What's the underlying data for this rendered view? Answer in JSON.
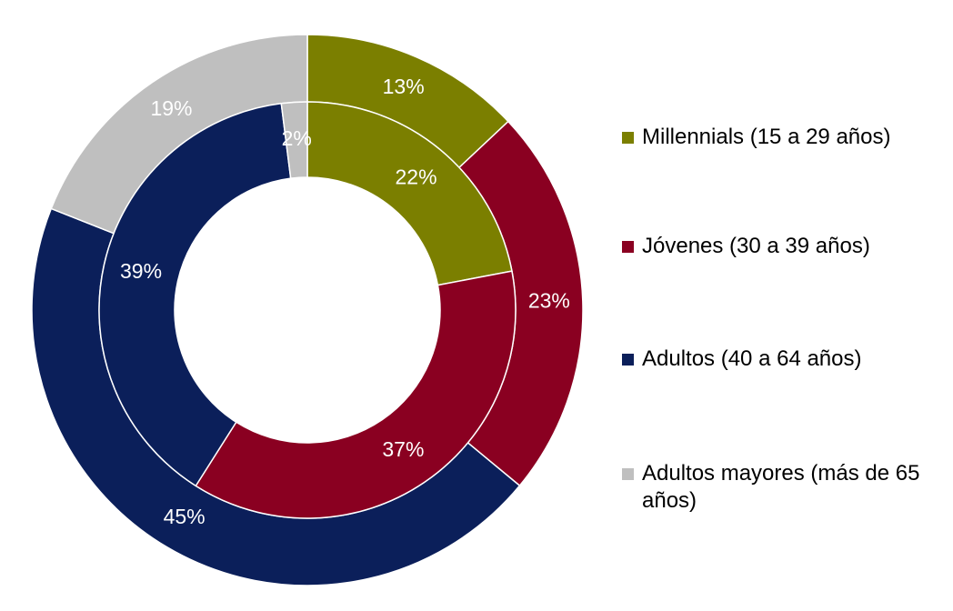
{
  "chart_data": {
    "type": "donut",
    "categories": [
      "Millennials (15 a 29 años)",
      "Jóvenes (30 a 39 años)",
      "Adultos (40 a 64 años)",
      "Adultos mayores (más de 65 años)"
    ],
    "colors": [
      "#7b7f00",
      "#8a0021",
      "#0b1f5a",
      "#bfbfbf"
    ],
    "series": [
      {
        "values": [
          13,
          23,
          45,
          19
        ],
        "value_labels": [
          "13%",
          "23%",
          "45%",
          "19%"
        ]
      },
      {
        "values": [
          22,
          37,
          39,
          2
        ],
        "value_labels": [
          "22%",
          "37%",
          "39%",
          "2%"
        ]
      }
    ],
    "legend": "right"
  }
}
